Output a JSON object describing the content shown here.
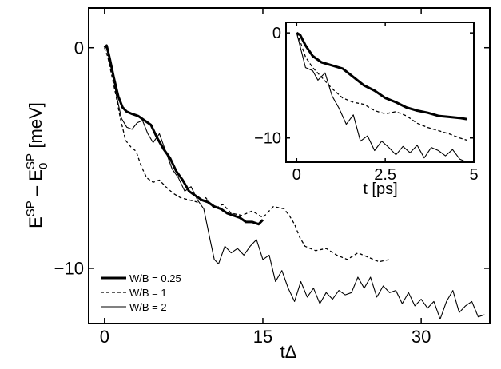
{
  "chart_data": [
    {
      "panel": "main",
      "type": "line",
      "xlabel": "tΔ",
      "ylabel": {
        "base1": "E",
        "sup1": "SP",
        "minus": " – ",
        "base2": "E",
        "sub2": "0",
        "sup2": "SP",
        "unit": " [meV]"
      },
      "xlim": [
        -1.5,
        36.5
      ],
      "ylim": [
        -12.5,
        1.8
      ],
      "xticks": [
        0,
        15,
        30
      ],
      "yticks": [
        0,
        -10
      ],
      "xtick_labels": [
        "0",
        "15",
        "30"
      ],
      "ytick_labels": [
        "0",
        "−10"
      ],
      "grid": false,
      "legend_position": "bottom-left",
      "series": [
        {
          "name": "W/B = 0.25",
          "style": "thick",
          "x": [
            0,
            0.2,
            0.5,
            0.9,
            1.3,
            1.7,
            2.1,
            2.6,
            3.2,
            3.8,
            4.4,
            5.0,
            5.6,
            6.2,
            6.8,
            7.4,
            8.0,
            8.6,
            9.2,
            9.8,
            10.4,
            11.0,
            11.6,
            12.2,
            12.8,
            13.4,
            14.0,
            14.6,
            15.0
          ],
          "y": [
            0.0,
            0.1,
            -0.5,
            -1.4,
            -2.2,
            -2.7,
            -2.9,
            -3.0,
            -3.1,
            -3.3,
            -3.5,
            -4.1,
            -4.6,
            -5.0,
            -5.6,
            -6.0,
            -6.5,
            -6.7,
            -6.9,
            -7.0,
            -7.2,
            -7.3,
            -7.5,
            -7.6,
            -7.7,
            -7.9,
            -7.9,
            -8.0,
            -7.8
          ]
        },
        {
          "name": "W/B = 1",
          "style": "dashed",
          "x": [
            0,
            0.3,
            0.7,
            1.1,
            1.5,
            2.0,
            2.5,
            3.0,
            3.5,
            4.0,
            4.6,
            5.2,
            5.8,
            6.5,
            7.2,
            8.0,
            8.8,
            9.6,
            10.4,
            11.2,
            12.0,
            13.0,
            14.0,
            15.0,
            16.0,
            17.0,
            17.5,
            18.0,
            18.5,
            19.0,
            20.0,
            21.0,
            22.0,
            23.0,
            24.0,
            25.0,
            26.0,
            27.0
          ],
          "y": [
            0.0,
            -0.4,
            -1.3,
            -2.2,
            -3.2,
            -4.2,
            -4.5,
            -4.7,
            -5.4,
            -5.9,
            -6.1,
            -6.0,
            -6.3,
            -6.6,
            -6.8,
            -6.9,
            -7.0,
            -6.8,
            -7.3,
            -7.1,
            -7.5,
            -7.6,
            -7.4,
            -7.7,
            -7.2,
            -7.3,
            -7.6,
            -8.0,
            -8.6,
            -9.0,
            -9.2,
            -9.1,
            -9.4,
            -9.6,
            -9.3,
            -9.5,
            -9.7,
            -9.6
          ]
        },
        {
          "name": "W/B = 2",
          "style": "thin",
          "x": [
            0,
            0.3,
            0.7,
            1.1,
            1.6,
            2.1,
            2.6,
            3.1,
            3.6,
            4.1,
            4.6,
            5.2,
            5.8,
            6.4,
            7.0,
            7.6,
            8.2,
            8.8,
            9.4,
            10.0,
            10.4,
            10.8,
            11.4,
            12.0,
            12.6,
            13.2,
            13.8,
            14.4,
            15.0,
            15.6,
            16.2,
            16.8,
            17.4,
            18.0,
            18.6,
            19.2,
            19.8,
            20.4,
            21.0,
            21.6,
            22.2,
            22.8,
            23.4,
            24.0,
            24.6,
            25.2,
            25.8,
            26.4,
            27.0,
            27.6,
            28.2,
            28.8,
            29.4,
            30.0,
            30.6,
            31.2,
            31.8,
            32.4,
            33.0,
            33.6,
            34.2,
            34.8,
            35.4,
            36.0
          ],
          "y": [
            0.0,
            0.0,
            -0.9,
            -2.1,
            -3.2,
            -3.6,
            -3.7,
            -3.4,
            -3.3,
            -3.9,
            -4.3,
            -3.9,
            -4.7,
            -5.5,
            -5.9,
            -6.5,
            -6.3,
            -6.9,
            -7.3,
            -8.7,
            -9.6,
            -9.8,
            -9.0,
            -9.3,
            -9.1,
            -9.4,
            -9.0,
            -8.7,
            -9.6,
            -9.4,
            -10.6,
            -10.1,
            -10.9,
            -11.5,
            -10.6,
            -11.3,
            -10.9,
            -11.6,
            -11.1,
            -11.4,
            -11.0,
            -11.2,
            -11.1,
            -10.4,
            -10.9,
            -10.4,
            -11.3,
            -10.8,
            -11.1,
            -11.0,
            -11.6,
            -11.1,
            -11.7,
            -11.4,
            -11.8,
            -11.5,
            -12.3,
            -11.5,
            -11.0,
            -12.0,
            -11.7,
            -11.5,
            -12.2,
            -12.1
          ]
        }
      ]
    },
    {
      "panel": "inset",
      "type": "line",
      "xlabel": "t [ps]",
      "ylabel": "",
      "xlim": [
        -0.3,
        5.0
      ],
      "ylim": [
        -12.3,
        1.0
      ],
      "xticks": [
        0,
        2.5,
        5
      ],
      "yticks": [
        0,
        -10
      ],
      "xtick_labels": [
        "0",
        "2.5",
        "5"
      ],
      "ytick_labels": [
        "0",
        "−10"
      ],
      "grid": false,
      "series": [
        {
          "style": "thick",
          "x": [
            0,
            0.1,
            0.25,
            0.45,
            0.7,
            1.0,
            1.3,
            1.6,
            1.9,
            2.2,
            2.5,
            2.8,
            3.1,
            3.4,
            3.7,
            4.0,
            4.3,
            4.6,
            4.8
          ],
          "y": [
            0.0,
            -0.2,
            -1.2,
            -2.2,
            -2.8,
            -3.1,
            -3.4,
            -4.2,
            -5.0,
            -5.5,
            -6.2,
            -6.6,
            -7.1,
            -7.4,
            -7.6,
            -7.9,
            -8.0,
            -8.1,
            -8.2
          ]
        },
        {
          "style": "dashed",
          "x": [
            0,
            0.1,
            0.25,
            0.45,
            0.7,
            1.0,
            1.3,
            1.6,
            1.9,
            2.2,
            2.5,
            2.8,
            3.1,
            3.4,
            3.7,
            4.0,
            4.3,
            4.6,
            4.8
          ],
          "y": [
            0.0,
            -0.8,
            -2.3,
            -3.3,
            -4.2,
            -5.3,
            -6.2,
            -6.6,
            -6.8,
            -7.4,
            -7.7,
            -7.5,
            -7.9,
            -8.6,
            -9.0,
            -9.3,
            -9.6,
            -10.0,
            -10.2
          ]
        },
        {
          "style": "thin",
          "x": [
            0,
            0.1,
            0.25,
            0.45,
            0.6,
            0.8,
            1.0,
            1.2,
            1.4,
            1.6,
            1.8,
            2.0,
            2.2,
            2.4,
            2.6,
            2.8,
            3.0,
            3.2,
            3.4,
            3.6,
            3.8,
            4.0,
            4.2,
            4.4,
            4.6,
            4.8
          ],
          "y": [
            0.0,
            -1.3,
            -3.3,
            -3.6,
            -4.5,
            -3.8,
            -6.0,
            -7.2,
            -8.7,
            -7.8,
            -10.3,
            -9.8,
            -11.2,
            -10.3,
            -10.9,
            -11.6,
            -10.8,
            -11.4,
            -10.7,
            -11.9,
            -10.9,
            -11.2,
            -11.7,
            -11.1,
            -12.0,
            -12.3
          ]
        }
      ]
    }
  ]
}
